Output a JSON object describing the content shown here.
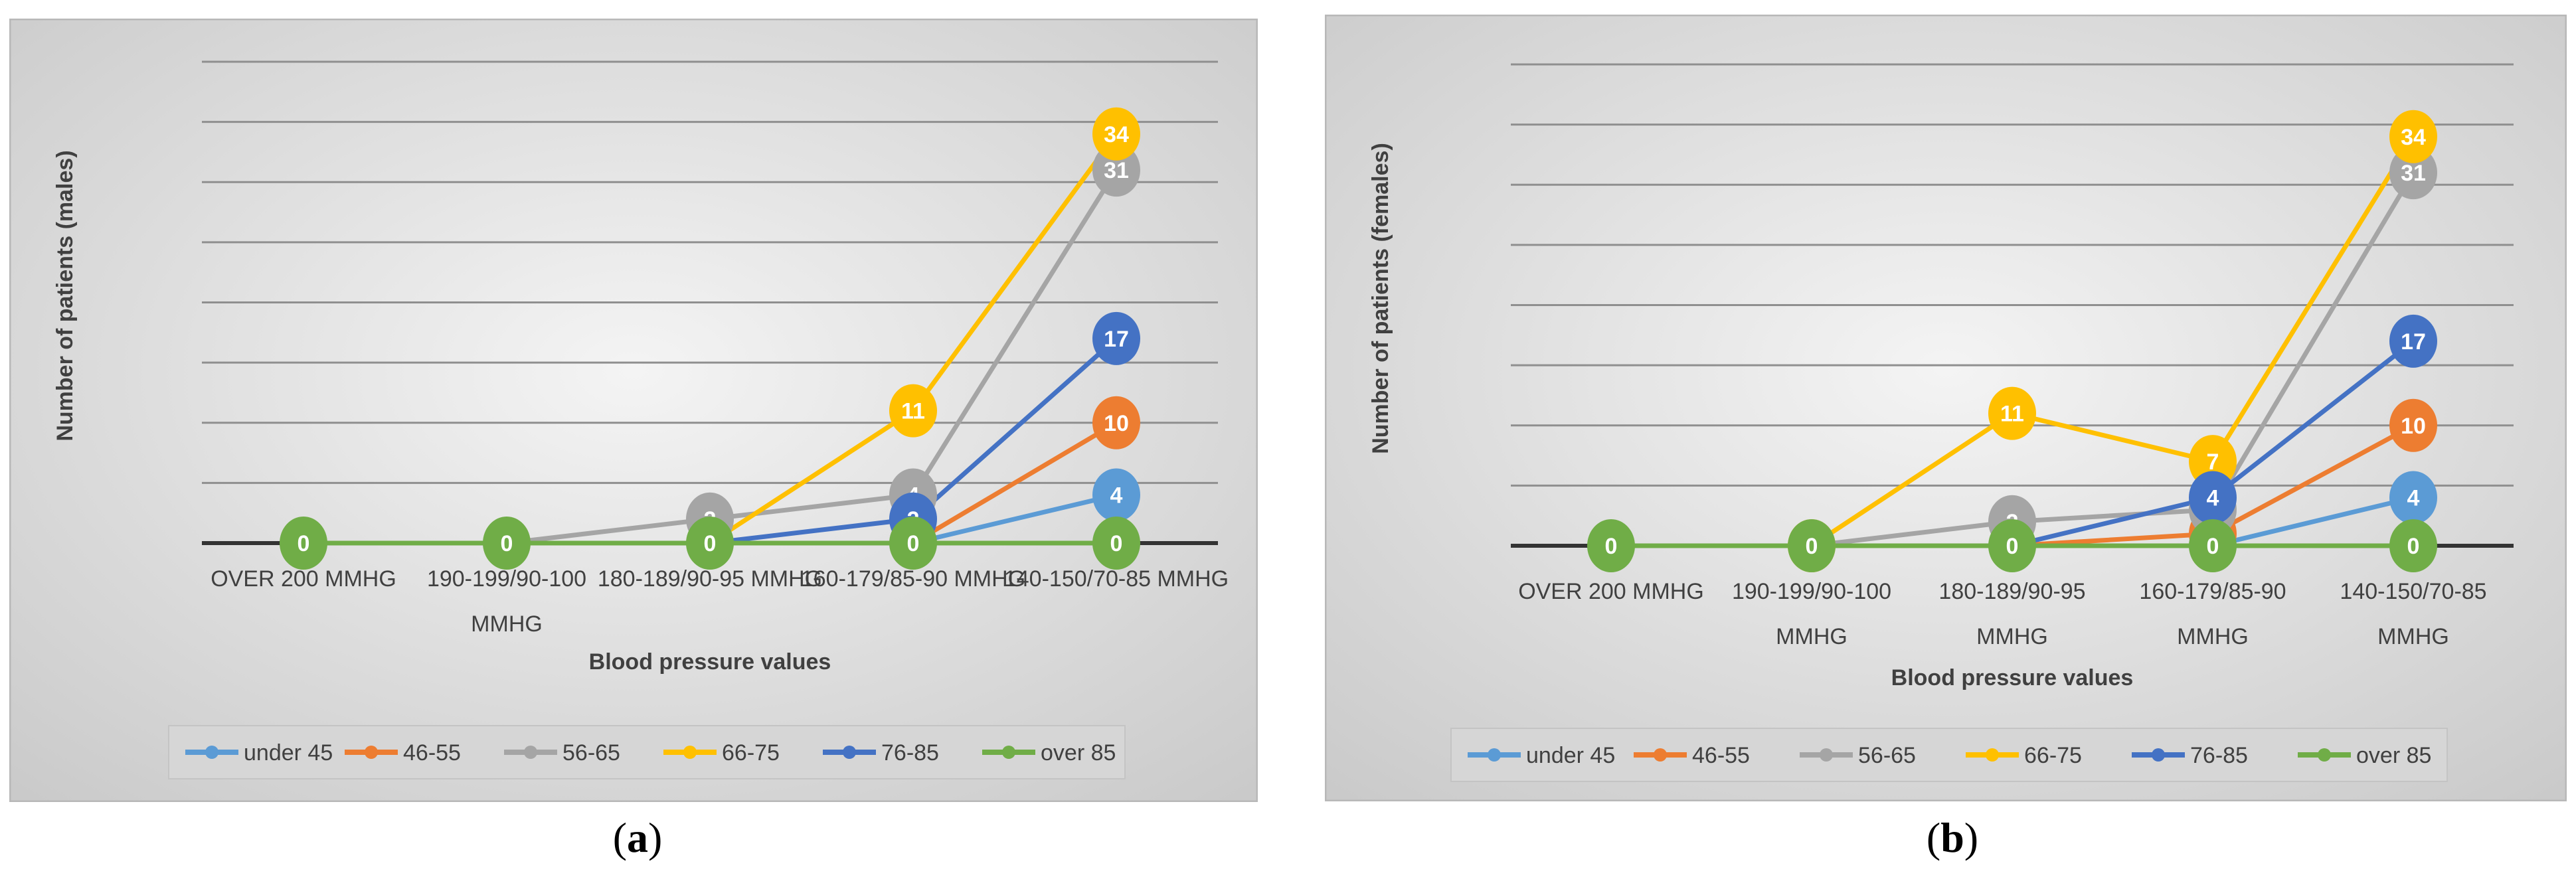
{
  "panels": [
    {
      "caption_letter": "a",
      "chart_data": {
        "type": "line",
        "title": "",
        "xlabel": "Blood pressure values",
        "ylabel": "Number of patients (males)",
        "categories": [
          "OVER 200 MMHG",
          "190-199/90-100 MMHG",
          "180-189/90-95 MMHG",
          "160-179/85-90 MMHG",
          "140-150/70-85 MMHG"
        ],
        "ylim": [
          0,
          40
        ],
        "grid": true,
        "legend_position": "bottom",
        "series": [
          {
            "name": "under 45",
            "color": "#5B9BD5",
            "values": [
              0,
              0,
              0,
              0,
              4
            ],
            "labels": [
              "",
              "",
              "",
              "",
              "4"
            ]
          },
          {
            "name": "46-55",
            "color": "#ED7D31",
            "values": [
              0,
              0,
              0,
              0,
              10
            ],
            "labels": [
              "",
              "",
              "",
              "",
              "10"
            ]
          },
          {
            "name": "56-65",
            "color": "#A5A5A5",
            "values": [
              0,
              0,
              2,
              4,
              31
            ],
            "labels": [
              "",
              "",
              "2",
              "4",
              "31"
            ]
          },
          {
            "name": "66-75",
            "color": "#FFC000",
            "values": [
              0,
              0,
              0,
              11,
              34
            ],
            "labels": [
              "",
              "",
              "",
              "11",
              "34"
            ]
          },
          {
            "name": "76-85",
            "color": "#4472C4",
            "values": [
              0,
              0,
              0,
              2,
              17
            ],
            "labels": [
              "",
              "",
              "",
              "2",
              "17"
            ]
          },
          {
            "name": "over 85",
            "color": "#70AD47",
            "values": [
              0,
              0,
              0,
              0,
              0
            ],
            "labels": [
              "0",
              "0",
              "0",
              "0",
              "0"
            ]
          }
        ]
      }
    },
    {
      "caption_letter": "b",
      "chart_data": {
        "type": "line",
        "title": "",
        "xlabel": "Blood pressure values",
        "ylabel": "Number of patients (females)",
        "categories": [
          "OVER 200 MMHG",
          "190-199/90-100 MMHG",
          "180-189/90-95 MMHG",
          "160-179/85-90 MMHG",
          "140-150/70-85 MMHG"
        ],
        "ylim": [
          0,
          40
        ],
        "grid": true,
        "legend_position": "bottom",
        "series": [
          {
            "name": "under 45",
            "color": "#5B9BD5",
            "values": [
              0,
              0,
              0,
              0,
              4
            ],
            "labels": [
              "",
              "",
              "",
              "",
              "4"
            ]
          },
          {
            "name": "46-55",
            "color": "#ED7D31",
            "values": [
              0,
              0,
              0,
              1,
              10
            ],
            "labels": [
              "",
              "",
              "",
              "1",
              "10"
            ]
          },
          {
            "name": "56-65",
            "color": "#A5A5A5",
            "values": [
              0,
              0,
              2,
              3,
              31
            ],
            "labels": [
              "",
              "",
              "2",
              "3",
              "31"
            ]
          },
          {
            "name": "66-75",
            "color": "#FFC000",
            "values": [
              0,
              0,
              11,
              7,
              34
            ],
            "labels": [
              "",
              "0",
              "11",
              "7",
              "34"
            ]
          },
          {
            "name": "76-85",
            "color": "#4472C4",
            "values": [
              0,
              0,
              0,
              4,
              17
            ],
            "labels": [
              "",
              "",
              "",
              "4",
              "17"
            ]
          },
          {
            "name": "over 85",
            "color": "#70AD47",
            "values": [
              0,
              0,
              0,
              0,
              0
            ],
            "labels": [
              "0",
              "0",
              "0",
              "0",
              "0"
            ]
          }
        ]
      }
    }
  ]
}
